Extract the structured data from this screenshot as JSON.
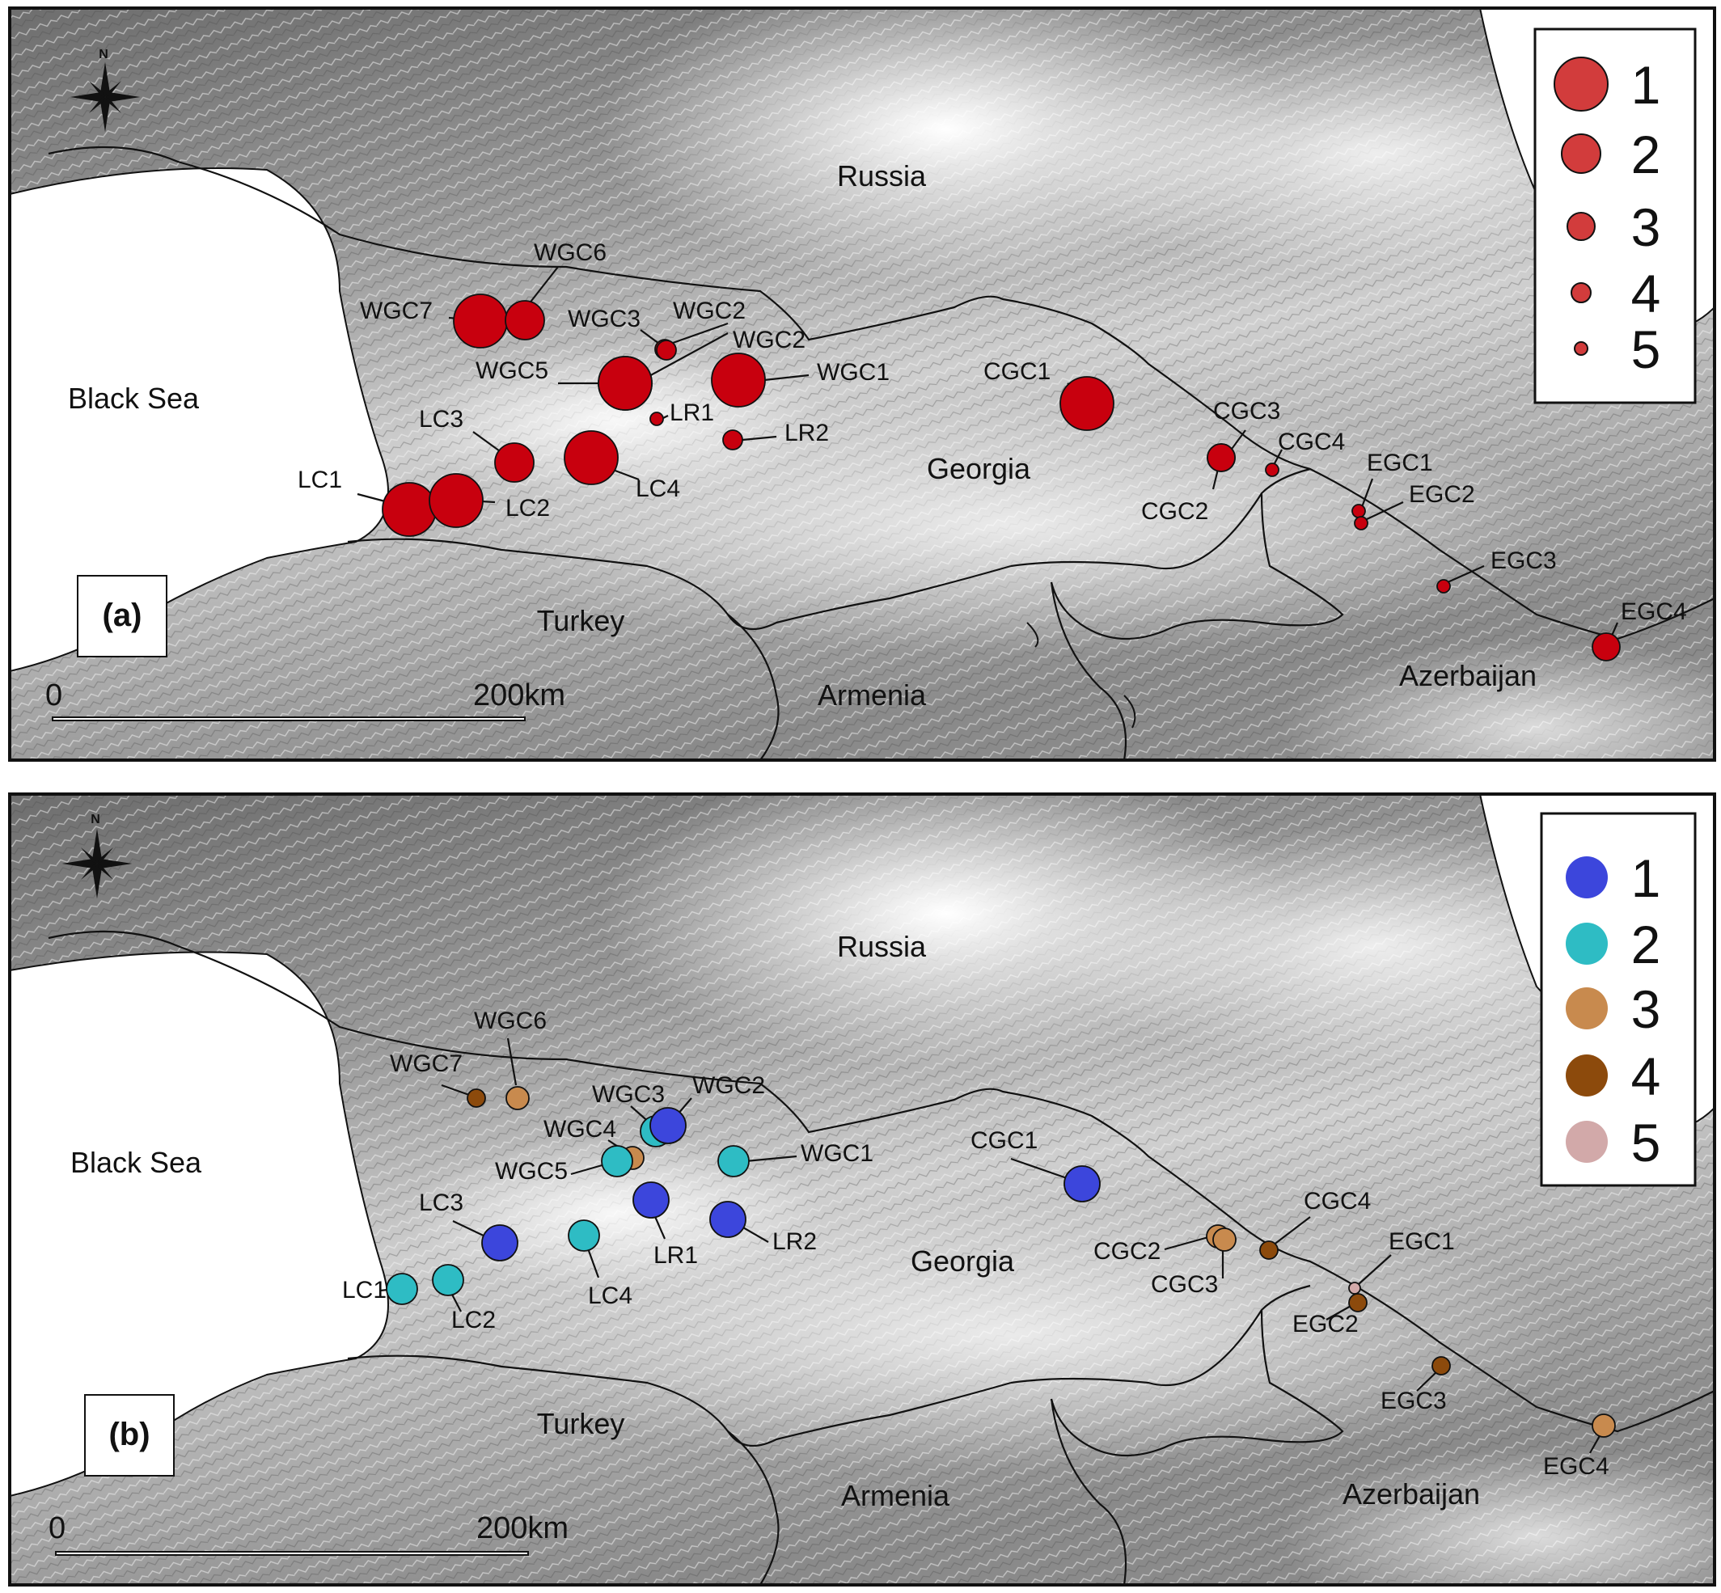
{
  "figure": {
    "panels": [
      {
        "id": "a",
        "tag": "(a)",
        "legend": {
          "entries": [
            {
              "label": "1",
              "color": "#d23c3c",
              "size": 1
            },
            {
              "label": "2",
              "color": "#d23c3c",
              "size": 2
            },
            {
              "label": "3",
              "color": "#d23c3c",
              "size": 3
            },
            {
              "label": "4",
              "color": "#d23c3c",
              "size": 4
            },
            {
              "label": "5",
              "color": "#d23c3c",
              "size": 5
            }
          ]
        },
        "places": {
          "russia": "Russia",
          "black_sea": "Black Sea",
          "georgia": "Georgia",
          "turkey": "Turkey",
          "armenia": "Armenia",
          "azerbaijan": "Azerbaijan"
        },
        "scale": {
          "start": "0",
          "end": "200km"
        },
        "north": "N",
        "sites": [
          {
            "name": "WGC7",
            "size": 1
          },
          {
            "name": "WGC6",
            "size": 2
          },
          {
            "name": "WGC3",
            "size": 4
          },
          {
            "name": "WGC2",
            "size": 4
          },
          {
            "name": "WGC2",
            "size": 1
          },
          {
            "name": "WGC5",
            "size": 1
          },
          {
            "name": "WGC1",
            "size": 1
          },
          {
            "name": "LR1",
            "size": 5
          },
          {
            "name": "LR2",
            "size": 4
          },
          {
            "name": "LC3",
            "size": 2
          },
          {
            "name": "LC4",
            "size": 1
          },
          {
            "name": "LC1",
            "size": 1
          },
          {
            "name": "LC2",
            "size": 1
          },
          {
            "name": "CGC1",
            "size": 1
          },
          {
            "name": "CGC3",
            "size": 3
          },
          {
            "name": "CGC2",
            "size": 3
          },
          {
            "name": "CGC4",
            "size": 5
          },
          {
            "name": "EGC1",
            "size": 5
          },
          {
            "name": "EGC2",
            "size": 5
          },
          {
            "name": "EGC3",
            "size": 5
          },
          {
            "name": "EGC4",
            "size": 3
          }
        ]
      },
      {
        "id": "b",
        "tag": "(b)",
        "legend": {
          "entries": [
            {
              "label": "1",
              "color": "#3c46dc"
            },
            {
              "label": "2",
              "color": "#2ebcc4"
            },
            {
              "label": "3",
              "color": "#c88a4e"
            },
            {
              "label": "4",
              "color": "#8c4a0c"
            },
            {
              "label": "5",
              "color": "#d2a9a9"
            }
          ]
        },
        "places": {
          "russia": "Russia",
          "black_sea": "Black Sea",
          "georgia": "Georgia",
          "turkey": "Turkey",
          "armenia": "Armenia",
          "azerbaijan": "Azerbaijan"
        },
        "scale": {
          "start": "0",
          "end": "200km"
        },
        "north": "N",
        "sites": [
          {
            "name": "WGC6",
            "group": 3
          },
          {
            "name": "WGC7",
            "group": 4
          },
          {
            "name": "WGC3",
            "group": 2
          },
          {
            "name": "WGC2",
            "group": 1
          },
          {
            "name": "WGC4",
            "group": 3
          },
          {
            "name": "WGC5",
            "group": 2
          },
          {
            "name": "WGC1",
            "group": 2
          },
          {
            "name": "LR1",
            "group": 1
          },
          {
            "name": "LR2",
            "group": 1
          },
          {
            "name": "LC3",
            "group": 1
          },
          {
            "name": "LC4",
            "group": 2
          },
          {
            "name": "LC1",
            "group": 2
          },
          {
            "name": "LC2",
            "group": 2
          },
          {
            "name": "CGC1",
            "group": 1
          },
          {
            "name": "CGC2",
            "group": 3
          },
          {
            "name": "CGC3",
            "group": 3
          },
          {
            "name": "CGC4",
            "group": 4
          },
          {
            "name": "EGC1",
            "group": 5
          },
          {
            "name": "EGC2",
            "group": 4
          },
          {
            "name": "EGC3",
            "group": 4
          },
          {
            "name": "EGC4",
            "group": 3
          }
        ]
      }
    ]
  }
}
